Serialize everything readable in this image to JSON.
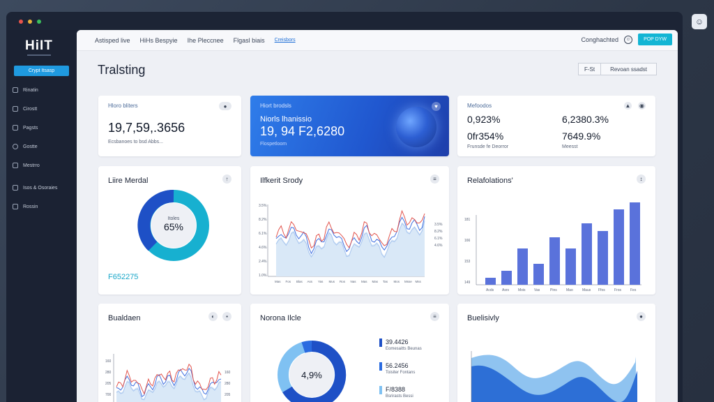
{
  "window": {
    "dot_colors": [
      "#e9544b",
      "#e8b33a",
      "#3bbf5c"
    ]
  },
  "sidebar": {
    "logo": "HiIT",
    "primary_button": "Crypt Itsasp",
    "items": [
      {
        "label": "Rinatin",
        "icon": "chart-icon"
      },
      {
        "label": "Cirostt",
        "icon": "chat-icon"
      },
      {
        "label": "Pagsts",
        "icon": "document-icon"
      },
      {
        "label": "Gostte",
        "icon": "settings-icon"
      },
      {
        "label": "Mestrro",
        "icon": "group-icon"
      },
      {
        "label": "Isos & Osoraies",
        "icon": "list-icon"
      },
      {
        "label": "Rossin",
        "icon": "folder-icon"
      }
    ]
  },
  "topbar": {
    "nav": [
      "Astisped live",
      "HiHs Bespyie",
      "Ihe Pleccnee",
      "Flgasl biais",
      "Creisbors"
    ],
    "active_index": 4,
    "right_text": "Conghachted",
    "button": "POP DYW"
  },
  "page": {
    "title": "Tralsting",
    "controls": [
      "F-St",
      "Revoan ssadst"
    ]
  },
  "stats": {
    "card1": {
      "label": "Hloro bliters",
      "value": "19,7,59,.3656",
      "sub": "Ecsbanoes to bsd Abbs..."
    },
    "card2": {
      "label": "Hiort brodsls",
      "value_top": "Niorls lhanissio",
      "value": "19, 94 F2,6280",
      "sub": "Flospetloom"
    },
    "card3": {
      "label": "Mefoodos",
      "v1": "0,923%",
      "v2": "6,2380.3%",
      "v3": "0fr354%",
      "v4": "7649.9%",
      "sub1": "Frunsde fe Deorror",
      "sub2": "Meesst"
    }
  },
  "card_titles": {
    "donut": "Liire Merdal",
    "line": "Ilfkerit Srody",
    "bar": "Relafolations'",
    "line2": "Bualdaen",
    "donut2": "Norona Ilcle",
    "area": "Buelisivly"
  },
  "donut1": {
    "inner_label": "Itoles",
    "center": "65%",
    "footer": "F652275",
    "colors": [
      "#1e50c6",
      "#17b0d0"
    ]
  },
  "donut2": {
    "center": "4,9%",
    "legend": [
      {
        "value": "39.4426",
        "sub": "Eomesaitts Beunas",
        "color": "#1e50c6"
      },
      {
        "value": "56.2456",
        "sub": "Toisiter Fontans",
        "color": "#2a6be0"
      },
      {
        "value": "F/8388",
        "sub": "Bsrirasts Bessi",
        "color": "#7fc1f2"
      }
    ]
  },
  "line_y_labels": [
    "3.5%",
    "8.2%",
    "6.1%",
    "4.6%",
    "2.4%",
    "1.0%"
  ],
  "line_x_labels": [
    "Mas",
    "Fos",
    "Blas",
    "Ass",
    "Yas",
    "Mus",
    "Ros",
    "Nas",
    "Mas",
    "Mas",
    "Tas",
    "Mos",
    "Msse",
    "Mss"
  ],
  "bar_y_labels": [
    "181",
    "166",
    "153",
    "149",
    "131"
  ],
  "bar_x_labels": [
    "Acds",
    "Asrs",
    "Mois",
    "Vas",
    "Pins",
    "Mao",
    "Maus",
    "Ffos",
    "Fros",
    "Fes"
  ],
  "line2_y_labels": [
    "160",
    "280",
    "205",
    "700",
    "150",
    "150"
  ],
  "chart_colors": {
    "red": "#e2554e",
    "blue": "#3e6fe0",
    "light": "#a9c6ef",
    "fill": "#d9e8f7",
    "bar": "#5a72db",
    "area_dark": "#2d6fd6",
    "area_light": "#8fc3f0"
  }
}
